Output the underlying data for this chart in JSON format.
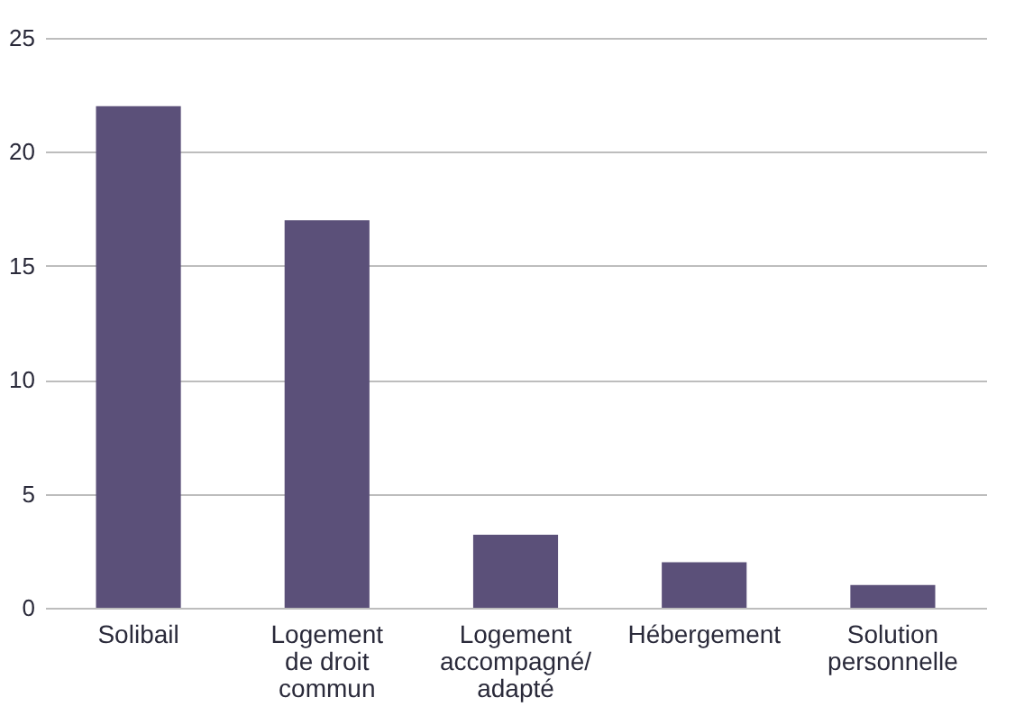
{
  "chart_data": {
    "type": "bar",
    "categories": [
      "Solibail",
      "Logement de droit commun",
      "Logement accompagné/ adapté",
      "Hébergement",
      "Solution personnelle"
    ],
    "values": [
      22,
      17,
      3.2,
      2,
      1
    ],
    "color": "#5b5079",
    "ylim": [
      0,
      25
    ],
    "yticks": [
      0,
      5,
      10,
      15,
      20,
      25
    ],
    "grid": "y"
  }
}
